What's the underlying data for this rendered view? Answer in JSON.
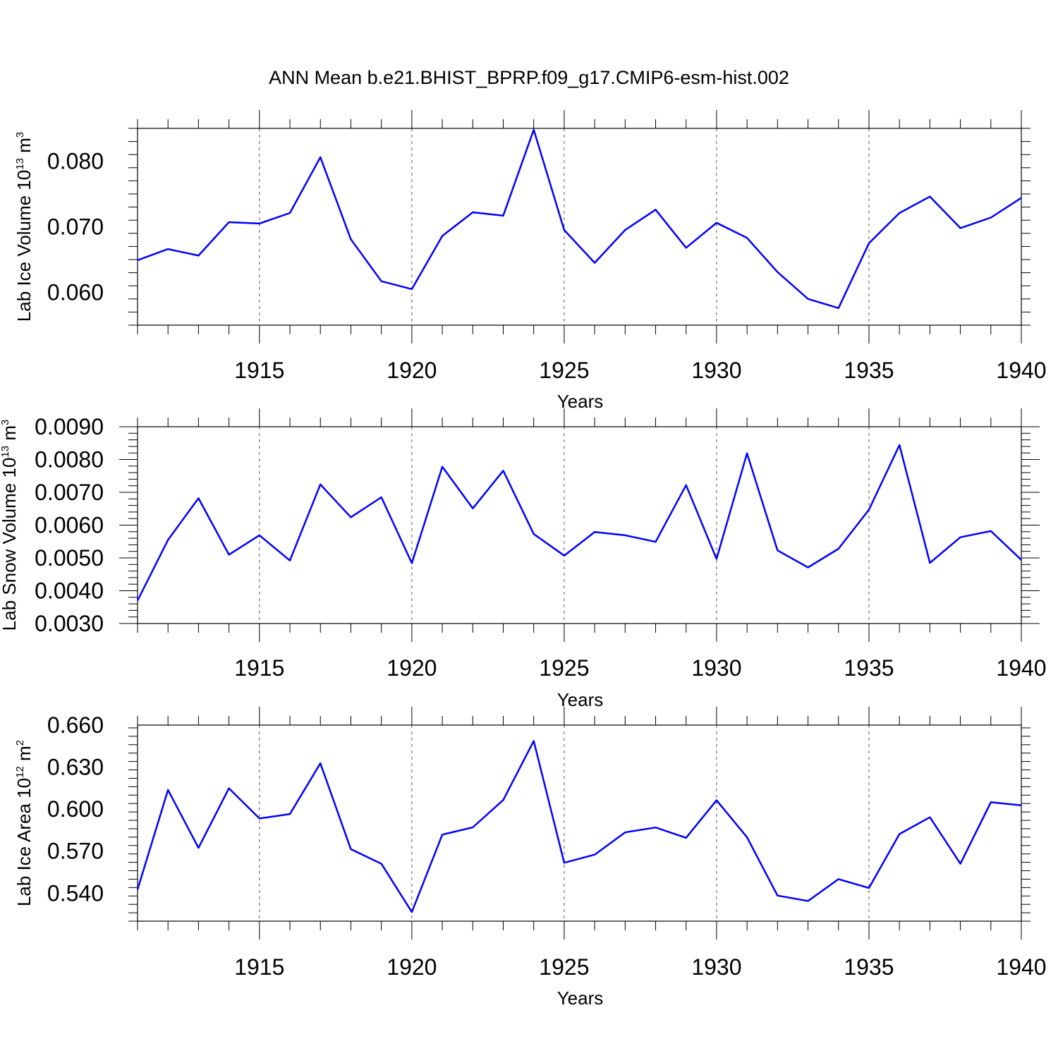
{
  "chart_data": [
    {
      "type": "line",
      "title": "ANN Mean b.e21.BHIST_BPRP.f09_g17.CMIP6-esm-hist.002",
      "xlabel": "Years",
      "ylabel": "Lab Ice Volume 10",
      "ylabel_exp": "13",
      "ylabel_unit": "m",
      "ylabel_unit_exp": "3",
      "xlim": [
        1911,
        1940
      ],
      "ylim": [
        0.055,
        0.085
      ],
      "xticks": [
        1915,
        1920,
        1925,
        1930,
        1935,
        1940
      ],
      "yticks": [
        0.06,
        0.07,
        0.08
      ],
      "ytick_labels": [
        "0.060",
        "0.070",
        "0.080"
      ],
      "grid": "vertical dashed at major x ticks",
      "x": [
        1911,
        1912,
        1913,
        1914,
        1915,
        1916,
        1917,
        1918,
        1919,
        1920,
        1921,
        1922,
        1923,
        1924,
        1925,
        1926,
        1927,
        1928,
        1929,
        1930,
        1931,
        1932,
        1933,
        1934,
        1935,
        1936,
        1937,
        1938,
        1939,
        1940
      ],
      "values": [
        0.0649,
        0.0666,
        0.0656,
        0.0707,
        0.0705,
        0.0721,
        0.0806,
        0.0681,
        0.0617,
        0.0605,
        0.0686,
        0.0722,
        0.0717,
        0.0848,
        0.0695,
        0.0645,
        0.0695,
        0.0726,
        0.0668,
        0.0706,
        0.0683,
        0.0631,
        0.059,
        0.0576,
        0.0675,
        0.0721,
        0.0746,
        0.0698,
        0.0714,
        0.0744
      ],
      "color": "#0000ff"
    },
    {
      "type": "line",
      "title": "",
      "xlabel": "Years",
      "ylabel": "Lab Snow Volume 10",
      "ylabel_exp": "13",
      "ylabel_unit": "m",
      "ylabel_unit_exp": "3",
      "xlim": [
        1911,
        1940
      ],
      "ylim": [
        0.003,
        0.009
      ],
      "xticks": [
        1915,
        1920,
        1925,
        1930,
        1935,
        1940
      ],
      "yticks": [
        0.003,
        0.004,
        0.005,
        0.006,
        0.007,
        0.008,
        0.009
      ],
      "ytick_labels": [
        "0.0030",
        "0.0040",
        "0.0050",
        "0.0060",
        "0.0070",
        "0.0080",
        "0.0090"
      ],
      "grid": "vertical dashed at major x ticks",
      "x": [
        1911,
        1912,
        1913,
        1914,
        1915,
        1916,
        1917,
        1918,
        1919,
        1920,
        1921,
        1922,
        1923,
        1924,
        1925,
        1926,
        1927,
        1928,
        1929,
        1930,
        1931,
        1932,
        1933,
        1934,
        1935,
        1936,
        1937,
        1938,
        1939,
        1940
      ],
      "values": [
        0.0037,
        0.00555,
        0.00682,
        0.0051,
        0.00569,
        0.00492,
        0.00724,
        0.00624,
        0.00685,
        0.00484,
        0.00778,
        0.00651,
        0.00766,
        0.00573,
        0.00507,
        0.00579,
        0.00569,
        0.00549,
        0.00722,
        0.00497,
        0.00819,
        0.00523,
        0.00471,
        0.00528,
        0.00647,
        0.00844,
        0.00485,
        0.00563,
        0.00582,
        0.00494
      ],
      "color": "#0000ff"
    },
    {
      "type": "line",
      "title": "",
      "xlabel": "Years",
      "ylabel": "Lab Ice Area 10",
      "ylabel_exp": "12",
      "ylabel_unit": "m",
      "ylabel_unit_exp": "2",
      "xlim": [
        1911,
        1940
      ],
      "ylim": [
        0.52,
        0.66
      ],
      "xticks": [
        1915,
        1920,
        1925,
        1930,
        1935,
        1940
      ],
      "yticks": [
        0.54,
        0.57,
        0.6,
        0.63,
        0.66
      ],
      "ytick_labels": [
        "0.540",
        "0.570",
        "0.600",
        "0.630",
        "0.660"
      ],
      "grid": "vertical dashed at major x ticks",
      "x": [
        1911,
        1912,
        1913,
        1914,
        1915,
        1916,
        1917,
        1918,
        1919,
        1920,
        1921,
        1922,
        1923,
        1924,
        1925,
        1926,
        1927,
        1928,
        1929,
        1930,
        1931,
        1932,
        1933,
        1934,
        1935,
        1936,
        1937,
        1938,
        1939,
        1940
      ],
      "values": [
        0.5426,
        0.6137,
        0.5723,
        0.6149,
        0.5933,
        0.5965,
        0.6327,
        0.5714,
        0.561,
        0.5265,
        0.5818,
        0.587,
        0.6065,
        0.6486,
        0.5617,
        0.5675,
        0.5834,
        0.5869,
        0.5795,
        0.6063,
        0.5799,
        0.5383,
        0.5344,
        0.55,
        0.5437,
        0.5822,
        0.5942,
        0.561,
        0.6049,
        0.6027
      ],
      "color": "#0000ff"
    }
  ]
}
